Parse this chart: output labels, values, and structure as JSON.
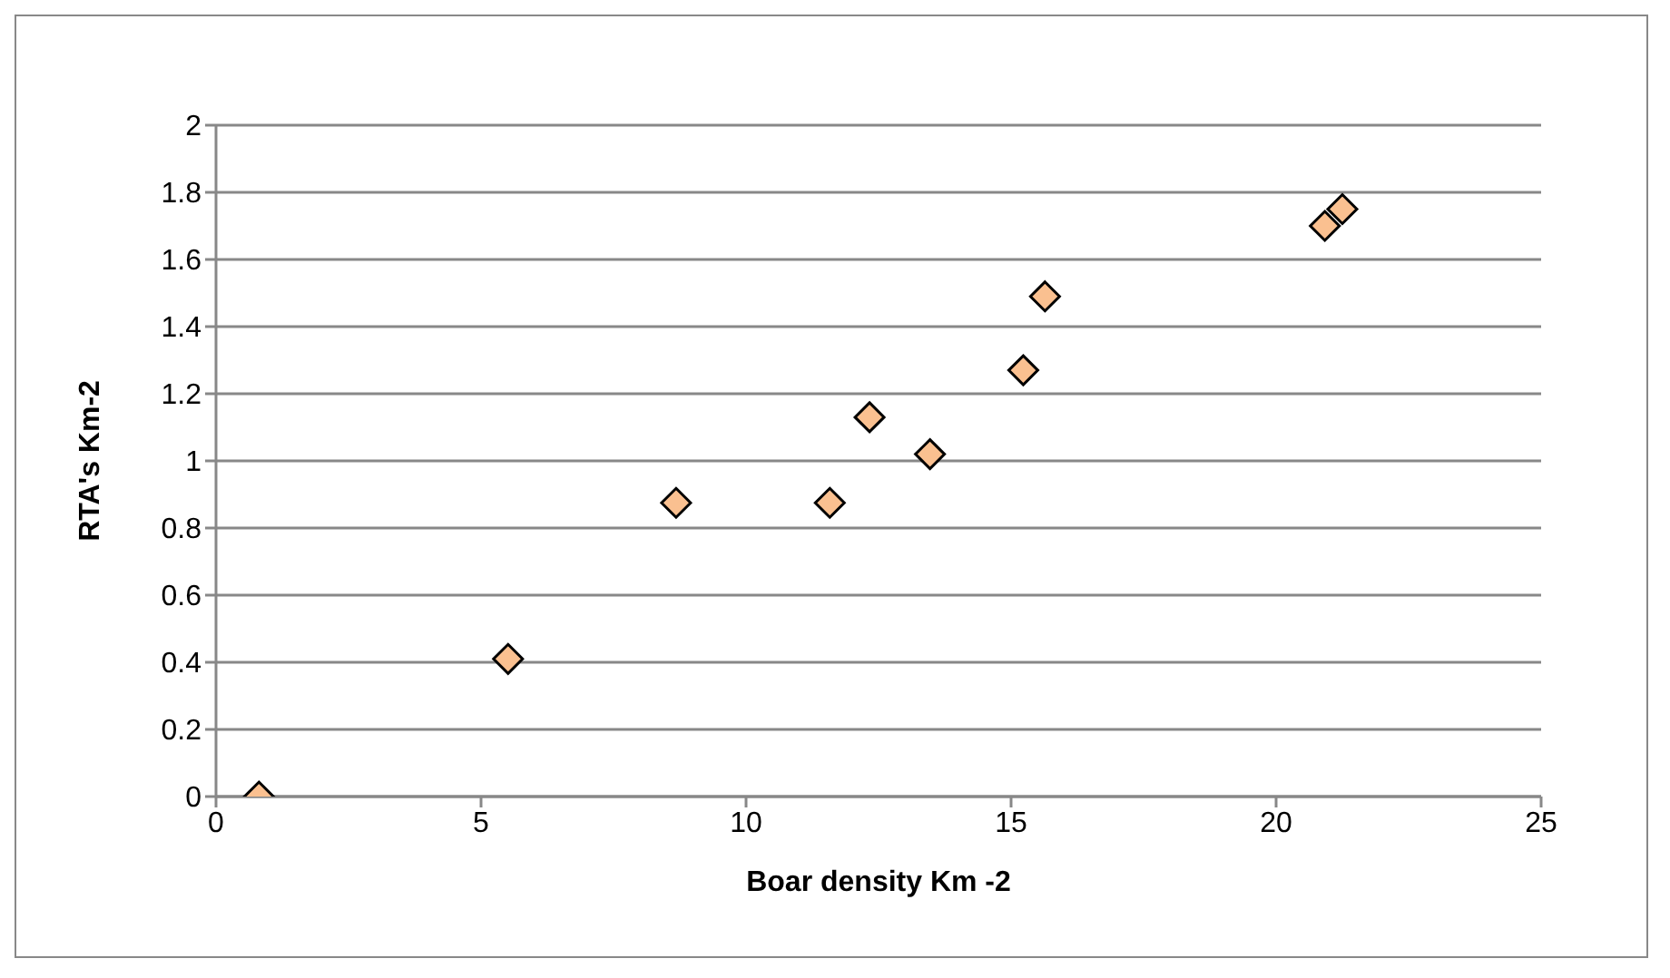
{
  "chart_data": {
    "type": "scatter",
    "xlabel": "Boar density Km -2",
    "ylabel": "RTA's Km-2",
    "x": [
      0.81,
      5.51,
      8.68,
      11.58,
      12.33,
      13.47,
      15.23,
      15.64,
      20.92,
      21.25
    ],
    "series": [
      {
        "color": "#fac090",
        "values": [
          0,
          0.41,
          0.875,
          0.875,
          1.13,
          1.02,
          1.27,
          1.49,
          1.7,
          1.75
        ]
      }
    ],
    "xlim": [
      0,
      25
    ],
    "xticks": [
      0,
      5,
      10,
      15,
      20,
      25
    ],
    "ylim": [
      0,
      2
    ],
    "yticks": [
      0,
      0.2,
      0.4,
      0.6,
      0.8,
      1,
      1.2,
      1.4,
      1.6,
      1.8,
      2
    ],
    "grid": "y",
    "marker": "diamond",
    "legend": false
  }
}
